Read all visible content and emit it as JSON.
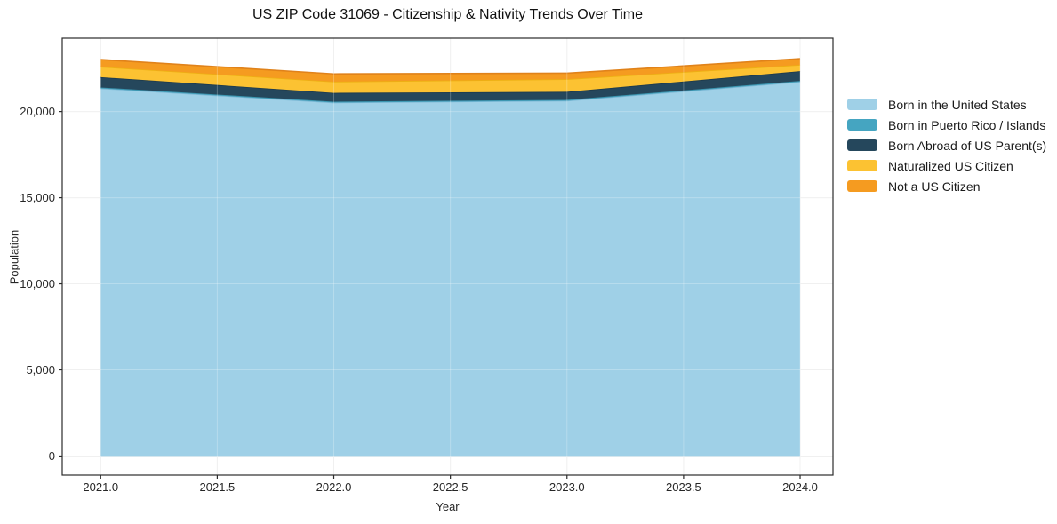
{
  "page": {
    "background": "#ffffff"
  },
  "chart_data": {
    "type": "area",
    "stacked": true,
    "title": "US ZIP Code 31069 - Citizenship & Nativity Trends Over Time",
    "xlabel": "Year",
    "ylabel": "Population",
    "x": [
      2021,
      2022,
      2023,
      2024
    ],
    "series": [
      {
        "name": "Born in the United States",
        "values": [
          21345,
          20520,
          20625,
          21725
        ],
        "fill": "#9fd0e7",
        "edge": "#7db9d6"
      },
      {
        "name": "Born in Puerto Rico / Islands",
        "values": [
          55,
          55,
          55,
          55
        ],
        "fill": "#45a5c1",
        "edge": "#3a93ad"
      },
      {
        "name": "Born Abroad of US Parent(s)",
        "values": [
          600,
          510,
          465,
          565
        ],
        "fill": "#25475c",
        "edge": "#1d3a4c"
      },
      {
        "name": "Naturalized US Citizen",
        "values": [
          600,
          650,
          735,
          365
        ],
        "fill": "#fcc232",
        "edge": "#edb013"
      },
      {
        "name": "Not a US Citizen",
        "values": [
          420,
          450,
          345,
          360
        ],
        "fill": "#f59b20",
        "edge": "#e0821a"
      }
    ],
    "totals": [
      23020,
      22185,
      22225,
      23070
    ],
    "x_ticks": {
      "values": [
        2021.0,
        2021.5,
        2022.0,
        2022.5,
        2023.0,
        2023.5,
        2024.0
      ],
      "labels": [
        "2021.0",
        "2021.5",
        "2022.0",
        "2022.5",
        "2023.0",
        "2023.5",
        "2024.0"
      ]
    },
    "y_ticks": {
      "values": [
        0,
        5000,
        10000,
        15000,
        20000
      ],
      "labels": [
        "0",
        "5,000",
        "10,000",
        "15,000",
        "20,000"
      ]
    },
    "xlim": [
      2020.835,
      2024.141
    ],
    "ylim": [
      -1110,
      24260
    ],
    "grid": true,
    "legend_position": "right-outside"
  },
  "colors": {
    "axis_frame": "#2b2b2b",
    "grid": "#ebebeb",
    "grid_overlay": "rgba(255,255,255,0.25)",
    "tick_text": "#262626"
  }
}
